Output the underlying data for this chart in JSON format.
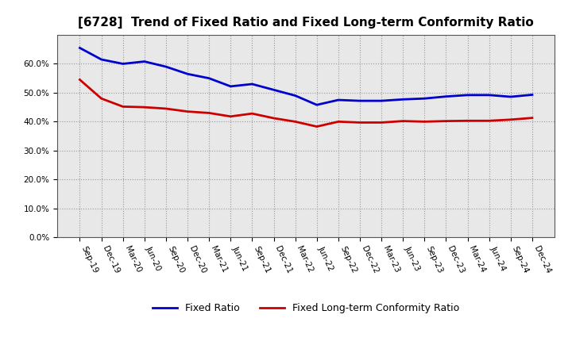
{
  "title": "[6728]  Trend of Fixed Ratio and Fixed Long-term Conformity Ratio",
  "x_labels": [
    "Sep-19",
    "Dec-19",
    "Mar-20",
    "Jun-20",
    "Sep-20",
    "Dec-20",
    "Mar-21",
    "Jun-21",
    "Sep-21",
    "Dec-21",
    "Mar-22",
    "Jun-22",
    "Sep-22",
    "Dec-22",
    "Mar-23",
    "Jun-23",
    "Sep-23",
    "Dec-23",
    "Mar-24",
    "Jun-24",
    "Sep-24",
    "Dec-24"
  ],
  "fixed_ratio": [
    0.655,
    0.615,
    0.6,
    0.608,
    0.59,
    0.565,
    0.55,
    0.522,
    0.53,
    0.51,
    0.49,
    0.458,
    0.475,
    0.472,
    0.472,
    0.477,
    0.48,
    0.487,
    0.492,
    0.492,
    0.486,
    0.493
  ],
  "fixed_lt_ratio": [
    0.545,
    0.48,
    0.452,
    0.45,
    0.445,
    0.435,
    0.43,
    0.418,
    0.428,
    0.412,
    0.4,
    0.383,
    0.4,
    0.397,
    0.397,
    0.402,
    0.4,
    0.402,
    0.403,
    0.403,
    0.407,
    0.413
  ],
  "fixed_ratio_color": "#0000CC",
  "fixed_lt_ratio_color": "#CC0000",
  "ylim": [
    0.0,
    0.7
  ],
  "yticks": [
    0.0,
    0.1,
    0.2,
    0.3,
    0.4,
    0.5,
    0.6
  ],
  "plot_bg_color": "#E8E8E8",
  "background_color": "#FFFFFF",
  "grid_color": "#999999",
  "title_fontsize": 11,
  "tick_fontsize": 7.5,
  "legend_labels": [
    "Fixed Ratio",
    "Fixed Long-term Conformity Ratio"
  ]
}
